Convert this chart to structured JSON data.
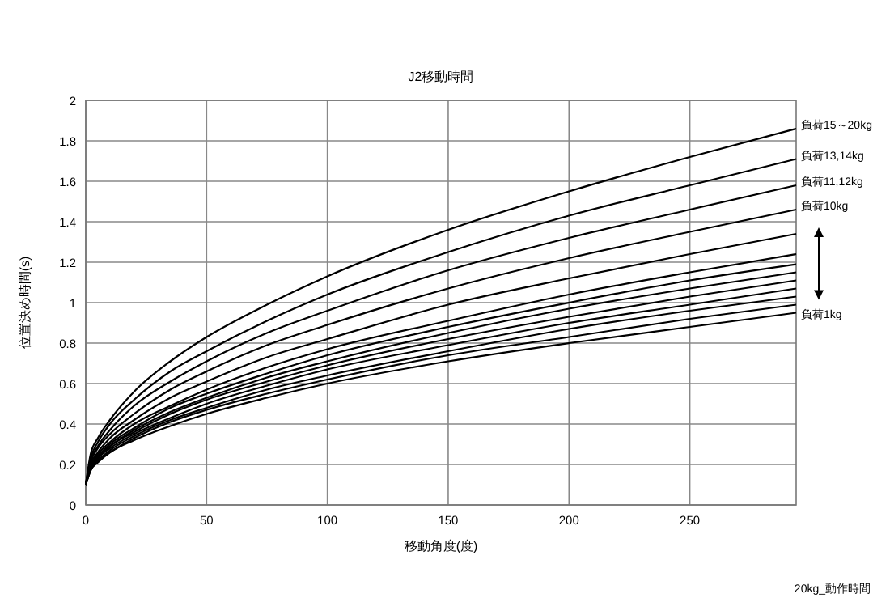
{
  "chart_data": {
    "type": "line",
    "title": "J2移動時間",
    "xlabel": "移動角度(度)",
    "ylabel": "位置決め時間(s)",
    "annotations": [
      "20kg_動作時間"
    ],
    "x": [
      0,
      2,
      5,
      10,
      20,
      35,
      50,
      75,
      100,
      150,
      200,
      250,
      294
    ],
    "xlim": [
      0,
      294
    ],
    "xticks": [
      0,
      50,
      100,
      150,
      200,
      250
    ],
    "ylim": [
      0,
      2
    ],
    "yticks": [
      0,
      0.2,
      0.4,
      0.6,
      0.8,
      1,
      1.2,
      1.4,
      1.6,
      1.8,
      2
    ],
    "grid": true,
    "marker": "none",
    "line_style": "solid",
    "series": [
      {
        "name": "負荷15～20kg",
        "color": "#000000",
        "values": [
          0.1,
          0.25,
          0.33,
          0.42,
          0.56,
          0.71,
          0.83,
          0.99,
          1.13,
          1.36,
          1.55,
          1.72,
          1.86
        ]
      },
      {
        "name": "負荷13,14kg",
        "color": "#000000",
        "values": [
          0.1,
          0.23,
          0.31,
          0.4,
          0.52,
          0.66,
          0.76,
          0.91,
          1.04,
          1.25,
          1.43,
          1.58,
          1.71
        ]
      },
      {
        "name": "負荷11,12kg",
        "color": "#000000",
        "values": [
          0.1,
          0.22,
          0.29,
          0.37,
          0.49,
          0.61,
          0.71,
          0.85,
          0.96,
          1.16,
          1.32,
          1.46,
          1.58
        ]
      },
      {
        "name": "負荷10kg",
        "color": "#000000",
        "values": [
          0.1,
          0.21,
          0.28,
          0.35,
          0.45,
          0.57,
          0.66,
          0.79,
          0.89,
          1.07,
          1.22,
          1.35,
          1.46
        ]
      },
      {
        "color": "#000000",
        "values": [
          0.1,
          0.2,
          0.26,
          0.33,
          0.42,
          0.53,
          0.61,
          0.73,
          0.82,
          0.99,
          1.12,
          1.24,
          1.34
        ]
      },
      {
        "color": "#000000",
        "values": [
          0.1,
          0.19,
          0.25,
          0.31,
          0.4,
          0.49,
          0.57,
          0.68,
          0.77,
          0.91,
          1.04,
          1.15,
          1.24
        ]
      },
      {
        "color": "#000000",
        "values": [
          0.1,
          0.19,
          0.24,
          0.3,
          0.38,
          0.48,
          0.55,
          0.65,
          0.74,
          0.88,
          1.0,
          1.11,
          1.19
        ]
      },
      {
        "color": "#000000",
        "values": [
          0.1,
          0.19,
          0.24,
          0.29,
          0.37,
          0.46,
          0.53,
          0.63,
          0.71,
          0.85,
          0.97,
          1.07,
          1.15
        ]
      },
      {
        "color": "#000000",
        "values": [
          0.1,
          0.18,
          0.23,
          0.29,
          0.36,
          0.45,
          0.52,
          0.61,
          0.69,
          0.82,
          0.93,
          1.03,
          1.11
        ]
      },
      {
        "color": "#000000",
        "values": [
          0.1,
          0.18,
          0.23,
          0.28,
          0.35,
          0.43,
          0.5,
          0.59,
          0.67,
          0.79,
          0.9,
          0.99,
          1.07
        ]
      },
      {
        "color": "#000000",
        "values": [
          0.1,
          0.18,
          0.22,
          0.27,
          0.34,
          0.42,
          0.48,
          0.57,
          0.64,
          0.76,
          0.87,
          0.96,
          1.03
        ]
      },
      {
        "color": "#000000",
        "values": [
          0.1,
          0.17,
          0.22,
          0.26,
          0.33,
          0.41,
          0.47,
          0.55,
          0.62,
          0.74,
          0.83,
          0.92,
          0.99
        ]
      },
      {
        "name": "負荷1kg",
        "color": "#000000",
        "values": [
          0.1,
          0.17,
          0.21,
          0.26,
          0.32,
          0.39,
          0.45,
          0.53,
          0.6,
          0.71,
          0.8,
          0.88,
          0.95
        ]
      }
    ]
  }
}
